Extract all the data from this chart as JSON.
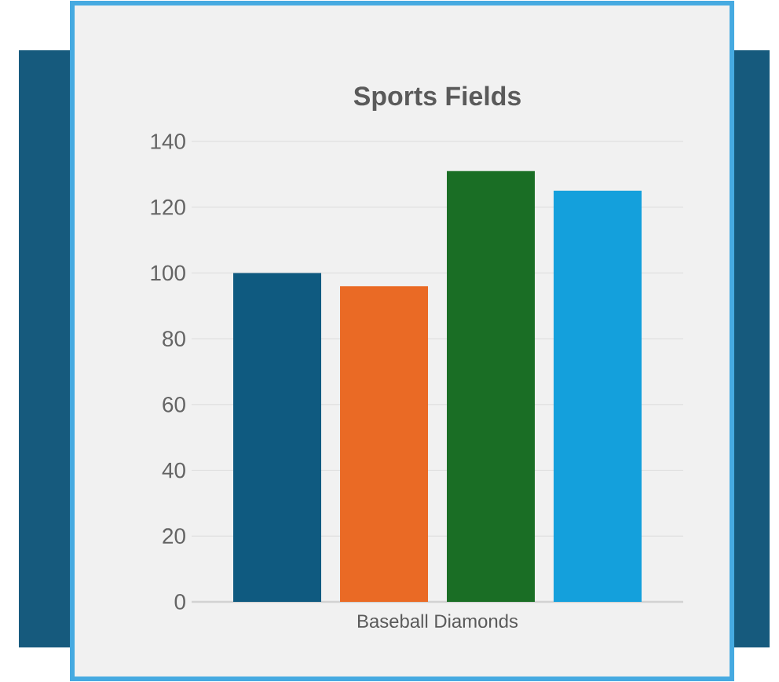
{
  "chart_data": {
    "type": "bar",
    "title": "Sports Fields",
    "categories": [
      "Baseball Diamonds"
    ],
    "series": [
      {
        "color": "#0f5a80",
        "values": [
          100
        ]
      },
      {
        "color": "#ea6a25",
        "values": [
          96
        ]
      },
      {
        "color": "#1a6e25",
        "values": [
          131
        ]
      },
      {
        "color": "#14a0dc",
        "values": [
          125
        ]
      }
    ],
    "ylim": [
      0,
      140
    ],
    "yticks": [
      0,
      20,
      40,
      60,
      80,
      100,
      120,
      140
    ],
    "grid": "y"
  }
}
